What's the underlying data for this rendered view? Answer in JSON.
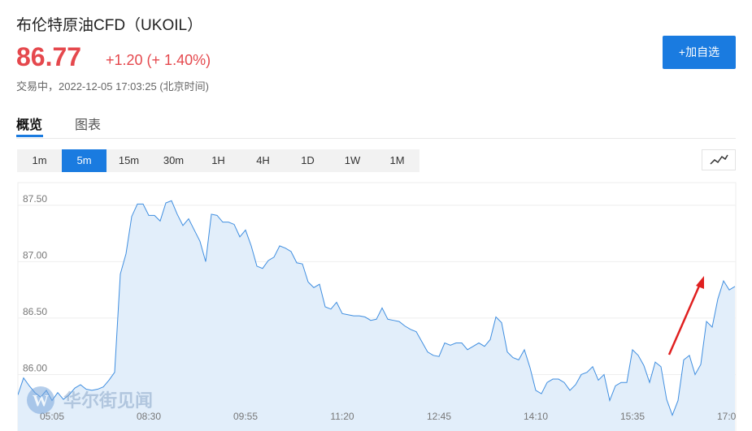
{
  "header": {
    "title": "布伦特原油CFD（UKOIL）",
    "price": "86.77",
    "change": "+1.20 (+ 1.40%)",
    "status": "交易中，2022-12-05 17:03:25 (北京时间)",
    "button": "+加自选"
  },
  "tabs": [
    "概览",
    "图表"
  ],
  "intervals": [
    "1m",
    "5m",
    "15m",
    "30m",
    "1H",
    "4H",
    "1D",
    "1W",
    "1M"
  ],
  "watermark": {
    "logo": "W",
    "text": "华尔街见闻"
  },
  "chart_data": {
    "type": "area",
    "color": "#3f8ee0",
    "fill": "#e2eefa",
    "grid": true,
    "categories": [
      null,
      null,
      null,
      null,
      null,
      null,
      "05:05",
      null,
      null,
      null,
      null,
      null,
      null,
      null,
      null,
      null,
      null,
      null,
      null,
      null,
      null,
      null,
      null,
      "08:30",
      null,
      null,
      null,
      null,
      null,
      null,
      null,
      null,
      null,
      null,
      null,
      null,
      null,
      null,
      null,
      null,
      "09:55",
      null,
      null,
      null,
      null,
      null,
      null,
      null,
      null,
      null,
      null,
      null,
      null,
      null,
      null,
      null,
      null,
      "11:20",
      null,
      null,
      null,
      null,
      null,
      null,
      null,
      null,
      null,
      null,
      null,
      null,
      null,
      null,
      null,
      null,
      "12:45",
      null,
      null,
      null,
      null,
      null,
      null,
      null,
      null,
      null,
      null,
      null,
      null,
      null,
      null,
      null,
      null,
      "14:10",
      null,
      null,
      null,
      null,
      null,
      null,
      null,
      null,
      null,
      null,
      null,
      null,
      null,
      null,
      null,
      null,
      "15:35",
      null,
      null,
      null,
      null,
      null,
      null,
      null,
      null,
      null,
      null,
      null,
      null,
      null,
      null,
      null,
      null,
      "17:00",
      null
    ],
    "values": [
      85.82,
      85.97,
      85.9,
      85.84,
      85.8,
      85.86,
      85.77,
      85.84,
      85.78,
      85.82,
      85.88,
      85.91,
      85.87,
      85.86,
      85.87,
      85.89,
      85.95,
      86.02,
      86.89,
      87.07,
      87.4,
      87.51,
      87.51,
      87.41,
      87.41,
      87.36,
      87.52,
      87.54,
      87.42,
      87.32,
      87.38,
      87.28,
      87.18,
      87.0,
      87.42,
      87.41,
      87.35,
      87.35,
      87.33,
      87.22,
      87.28,
      87.14,
      86.96,
      86.94,
      87.01,
      87.04,
      87.14,
      87.12,
      87.09,
      86.99,
      86.98,
      86.82,
      86.77,
      86.8,
      86.6,
      86.58,
      86.64,
      86.54,
      86.53,
      86.52,
      86.52,
      86.51,
      86.48,
      86.49,
      86.59,
      86.49,
      86.48,
      86.47,
      86.43,
      86.4,
      86.38,
      86.29,
      86.2,
      86.17,
      86.16,
      86.28,
      86.26,
      86.28,
      86.28,
      86.22,
      86.25,
      86.28,
      86.25,
      86.31,
      86.51,
      86.46,
      86.2,
      86.15,
      86.13,
      86.22,
      86.06,
      85.86,
      85.83,
      85.93,
      85.96,
      85.96,
      85.93,
      85.86,
      85.91,
      86.0,
      86.02,
      86.07,
      85.95,
      86.0,
      85.77,
      85.9,
      85.93,
      85.93,
      86.22,
      86.17,
      86.08,
      85.93,
      86.11,
      86.07,
      85.78,
      85.64,
      85.77,
      86.13,
      86.17,
      86.0,
      86.09,
      86.47,
      86.42,
      86.67,
      86.83,
      86.75,
      86.78
    ],
    "ylim": [
      85.5,
      87.7
    ],
    "yticks": [
      {
        "value": 86,
        "label": "86.00"
      },
      {
        "value": 86.5,
        "label": "86.50"
      },
      {
        "value": 87,
        "label": "87.00"
      },
      {
        "value": 87.5,
        "label": "87.50"
      }
    ]
  }
}
